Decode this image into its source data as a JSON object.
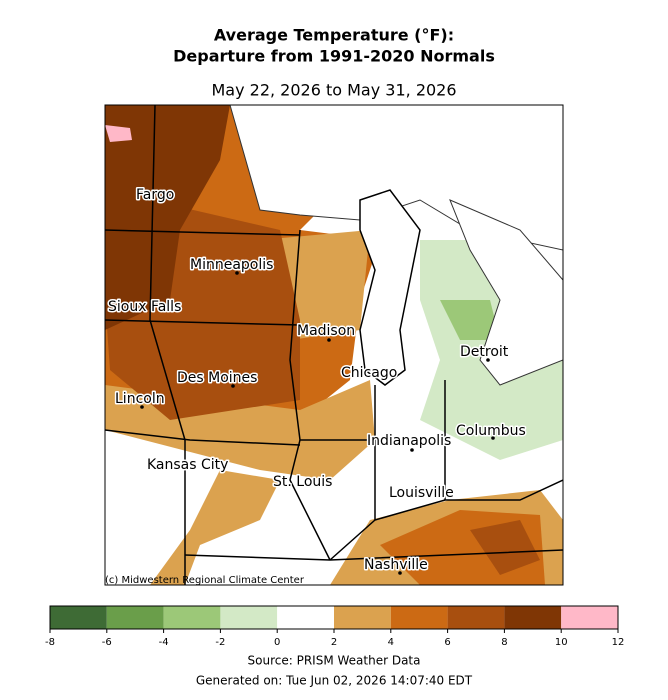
{
  "title": [
    "Average Temperature (°F):",
    "Departure from 1991-2020 Normals"
  ],
  "subtitle": "May 22, 2026 to May 31, 2026",
  "map": {
    "cities": [
      "Fargo",
      "Minneapolis",
      "Sioux Falls",
      "Madison",
      "Detroit",
      "Chicago",
      "Des Moines",
      "Lincoln",
      "Columbus",
      "Indianapolis",
      "Kansas City",
      "St. Louis",
      "Louisville",
      "Nashville"
    ],
    "credit": "(c) Midwestern Regional Climate Center"
  },
  "colorbar": {
    "bins": [
      -8,
      -6,
      -4,
      -2,
      0,
      2,
      4,
      6,
      8,
      10,
      12
    ],
    "colors": [
      "#3e6b35",
      "#6a9e4a",
      "#9cc878",
      "#d3e9c6",
      "#ffffff",
      "#dba24f",
      "#cc6a14",
      "#a84f0f",
      "#7f3605",
      "#ffb8c8"
    ]
  },
  "source": "Source: PRISM Weather Data",
  "generated": "Generated on: Tue Jun 02, 2026 14:07:40 EDT"
}
